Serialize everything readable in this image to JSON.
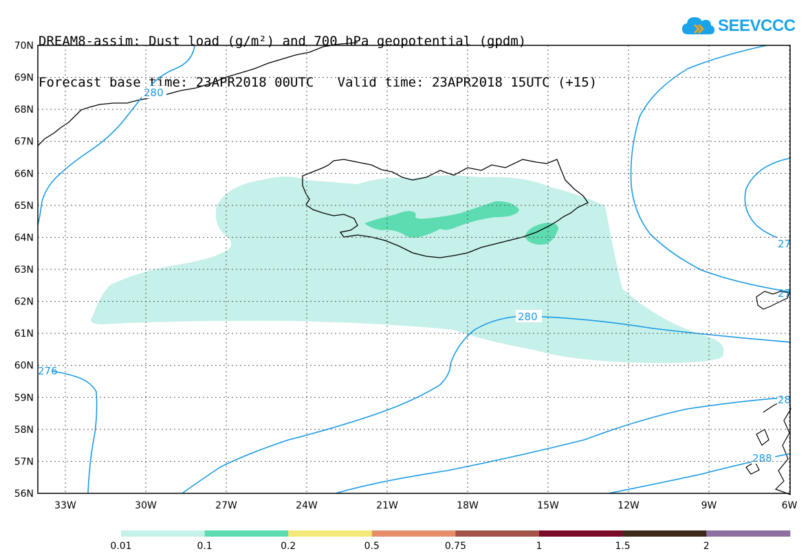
{
  "header": {
    "line1": "DREAM8-assim: Dust load (g/m²) and 700 hPa geopotential (gpdm)",
    "line2": "Forecast base time: 23APR2018 00UTC   Valid time: 23APR2018 15UTC (+15)"
  },
  "logo": {
    "text": "SEEVCCC",
    "icon": "cloud-icon",
    "color": "#1aa3e8"
  },
  "map": {
    "lat_labels": [
      "70N",
      "69N",
      "68N",
      "67N",
      "66N",
      "65N",
      "64N",
      "63N",
      "62N",
      "61N",
      "60N",
      "59N",
      "58N",
      "57N",
      "56N"
    ],
    "lon_labels": [
      "33W",
      "30W",
      "27W",
      "24W",
      "21W",
      "18W",
      "15W",
      "12W",
      "9W",
      "6W"
    ],
    "contour_labels": [
      "280",
      "280",
      "276",
      "27",
      "27",
      "28",
      "288"
    ],
    "contour_color": "#1a9ae6",
    "dust_colors": {
      "light": "#c6f0ea",
      "medium": "#5ddcb1"
    }
  },
  "colorbar": {
    "segments": [
      {
        "color": "#c6f0ea"
      },
      {
        "color": "#5ddcb1"
      },
      {
        "color": "#f5e87a"
      },
      {
        "color": "#e68e6a"
      },
      {
        "color": "#a35246"
      },
      {
        "color": "#7a0a2a"
      },
      {
        "color": "#3d2a1a"
      },
      {
        "color": "#8c6ea0"
      }
    ],
    "labels": [
      "0.01",
      "0.1",
      "0.2",
      "0.5",
      "0.75",
      "1",
      "1.5",
      "2"
    ]
  }
}
